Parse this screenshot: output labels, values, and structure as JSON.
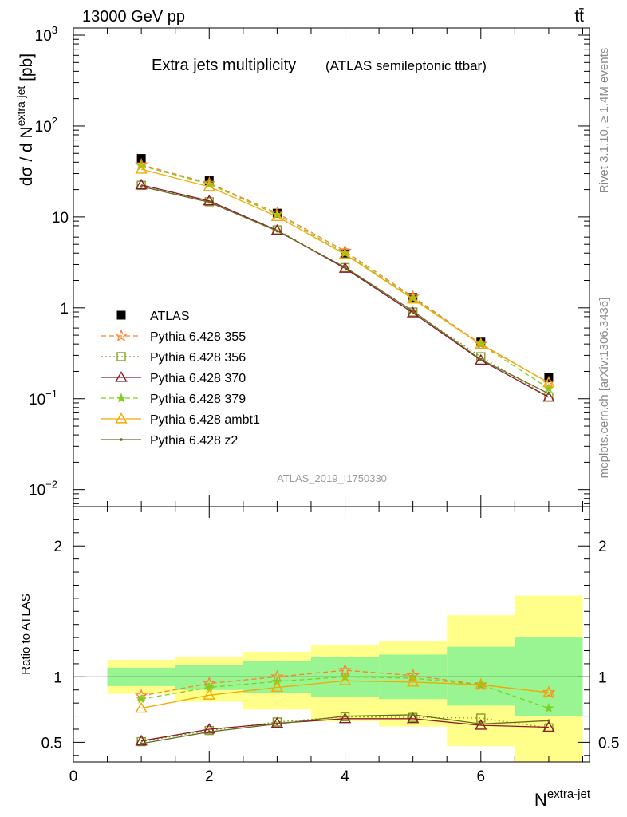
{
  "header": {
    "left": "13000 GeV pp",
    "right": "tt̄"
  },
  "side_labels": {
    "rivet": "Rivet 3.1.10, ≥ 1.4M events",
    "mcplots": "mcplots.cern.ch [arXiv:1306.3436]"
  },
  "chart_data": [
    {
      "type": "line",
      "title": "Extra jets multiplicity",
      "subtitle": "(ATLAS semileptonic ttbar)",
      "watermark": "ATLAS_2019_I1750330",
      "ylabel": {
        "main": "dσ / d N",
        "sup": "extra-jet",
        "unit": " [pb]"
      },
      "yscale": "log",
      "xlim": [
        0,
        7.6
      ],
      "ylim": [
        0.0065,
        1200
      ],
      "legend_placement": "middle-left",
      "yticks": [
        {
          "value": 0.01,
          "label": "10",
          "sup": "−2"
        },
        {
          "value": 0.1,
          "label": "10",
          "sup": "−1"
        },
        {
          "value": 1,
          "label": "1",
          "sup": ""
        },
        {
          "value": 10,
          "label": "10",
          "sup": ""
        },
        {
          "value": 100,
          "label": "10",
          "sup": "2"
        },
        {
          "value": 1000,
          "label": "10",
          "sup": "3"
        }
      ],
      "x": [
        1,
        2,
        3,
        4,
        5,
        6,
        7
      ],
      "series": [
        {
          "name": "ATLAS",
          "color": "#000000",
          "style": "data",
          "marker": "square-filled",
          "values": [
            44,
            25,
            11,
            4.0,
            1.3,
            0.42,
            0.17
          ]
        },
        {
          "name": "Pythia 6.428 355",
          "color": "#ff7f2a",
          "style": "dashed",
          "marker": "star",
          "values": [
            37.5,
            23.5,
            11.0,
            4.2,
            1.32,
            0.4,
            0.15
          ]
        },
        {
          "name": "Pythia 6.428 356",
          "color": "#7f9f1f",
          "style": "dotted",
          "marker": "square-open",
          "values": [
            22.3,
            14.7,
            7.2,
            2.77,
            0.9,
            0.29,
            0.105
          ]
        },
        {
          "name": "Pythia 6.428 370",
          "color": "#8b1a2b",
          "style": "solid",
          "marker": "triangle-open",
          "values": [
            22.5,
            15.0,
            7.1,
            2.72,
            0.88,
            0.265,
            0.104
          ]
        },
        {
          "name": "Pythia 6.428 379",
          "color": "#7fcf1f",
          "style": "dashed",
          "marker": "star-small",
          "values": [
            36.5,
            23.0,
            10.6,
            4.0,
            1.28,
            0.395,
            0.13
          ]
        },
        {
          "name": "Pythia 6.428 ambt1",
          "color": "#f5a800",
          "style": "solid",
          "marker": "triangle-open",
          "values": [
            33.5,
            21.5,
            10.1,
            3.88,
            1.25,
            0.395,
            0.15
          ]
        },
        {
          "name": "Pythia 6.428 z2",
          "color": "#6b6b1f",
          "style": "solid",
          "marker": "dot",
          "values": [
            21.6,
            14.5,
            7.0,
            2.8,
            0.92,
            0.27,
            0.114
          ]
        }
      ]
    },
    {
      "type": "line",
      "xlabel": {
        "main": "N",
        "sup": "extra-jet"
      },
      "ylabel": "Ratio to ATLAS",
      "xlim": [
        0,
        7.6
      ],
      "ylim": [
        0.35,
        2.3
      ],
      "yticks": [
        0.5,
        1,
        2
      ],
      "xticks": [
        0,
        2,
        4,
        6
      ],
      "reference": 1,
      "bands": [
        {
          "x0": 0.5,
          "x1": 1.5,
          "inner": [
            0.93,
            1.07
          ],
          "outer": [
            0.87,
            1.13
          ]
        },
        {
          "x0": 1.5,
          "x1": 2.5,
          "inner": [
            0.9,
            1.09
          ],
          "outer": [
            0.81,
            1.15
          ]
        },
        {
          "x0": 2.5,
          "x1": 3.5,
          "inner": [
            0.88,
            1.12
          ],
          "outer": [
            0.75,
            1.19
          ]
        },
        {
          "x0": 3.5,
          "x1": 4.5,
          "inner": [
            0.85,
            1.15
          ],
          "outer": [
            0.66,
            1.24
          ]
        },
        {
          "x0": 4.5,
          "x1": 5.5,
          "inner": [
            0.83,
            1.17
          ],
          "outer": [
            0.62,
            1.27
          ]
        },
        {
          "x0": 5.5,
          "x1": 6.5,
          "inner": [
            0.78,
            1.23
          ],
          "outer": [
            0.47,
            1.47
          ]
        },
        {
          "x0": 6.5,
          "x1": 7.5,
          "inner": [
            0.7,
            1.3
          ],
          "outer": [
            0.35,
            1.62
          ]
        }
      ],
      "series": [
        {
          "name": "Pythia 6.428 355",
          "color": "#ff7f2a",
          "style": "dashed",
          "marker": "star",
          "values": [
            0.855,
            0.95,
            1.0,
            1.05,
            1.01,
            0.94,
            0.88
          ]
        },
        {
          "name": "Pythia 6.428 356",
          "color": "#7f9f1f",
          "style": "dotted",
          "marker": "square-open",
          "values": [
            0.505,
            0.59,
            0.655,
            0.695,
            0.69,
            0.685,
            0.61
          ]
        },
        {
          "name": "Pythia 6.428 370",
          "color": "#8b1a2b",
          "style": "solid",
          "marker": "triangle-open",
          "values": [
            0.51,
            0.6,
            0.645,
            0.68,
            0.68,
            0.63,
            0.615
          ]
        },
        {
          "name": "Pythia 6.428 379",
          "color": "#7fcf1f",
          "style": "dashed",
          "marker": "star-small",
          "values": [
            0.83,
            0.92,
            0.965,
            1.0,
            0.99,
            0.94,
            0.76
          ]
        },
        {
          "name": "Pythia 6.428 ambt1",
          "color": "#f5a800",
          "style": "solid",
          "marker": "triangle-open",
          "values": [
            0.76,
            0.86,
            0.92,
            0.97,
            0.96,
            0.94,
            0.88
          ]
        },
        {
          "name": "Pythia 6.428 z2",
          "color": "#6b6b1f",
          "style": "solid",
          "marker": "dot",
          "values": [
            0.49,
            0.58,
            0.64,
            0.7,
            0.71,
            0.64,
            0.665
          ]
        }
      ]
    }
  ]
}
